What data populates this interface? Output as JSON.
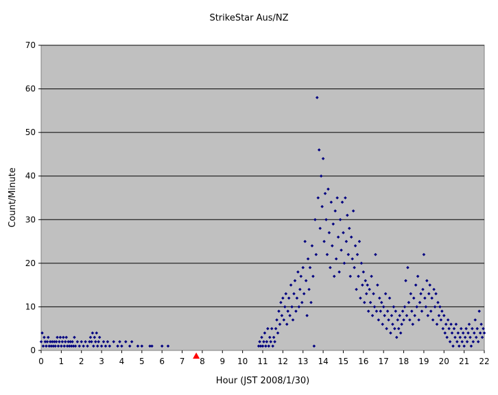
{
  "chart_data": {
    "type": "scatter",
    "title": "StrikeStar Aus/NZ",
    "xlabel": "Hour (JST 2008/1/30)",
    "ylabel": "Count/Minute",
    "xlim": [
      0,
      22
    ],
    "ylim": [
      0,
      70
    ],
    "xticks": [
      "0",
      "1",
      "2",
      "3",
      "4",
      "5",
      "6",
      "7",
      "8",
      "9",
      "10",
      "11",
      "12",
      "13",
      "14",
      "15",
      "16",
      "17",
      "18",
      "19",
      "20",
      "21",
      "22"
    ],
    "yticks": [
      "0",
      "10",
      "20",
      "30",
      "40",
      "50",
      "60",
      "70"
    ],
    "grid": "horizontal",
    "legend": "none",
    "colors": {
      "plot_bg": "#c0c0c0",
      "marker": "#000080",
      "marker_event": "#ff0000",
      "gridline": "#000000"
    },
    "event_marker": {
      "x": 7.7,
      "y": 0
    },
    "series": [
      {
        "marker": "diamond",
        "points": [
          [
            0.0,
            2
          ],
          [
            0.05,
            4
          ],
          [
            0.1,
            1
          ],
          [
            0.15,
            3
          ],
          [
            0.2,
            2
          ],
          [
            0.25,
            1
          ],
          [
            0.3,
            2
          ],
          [
            0.35,
            3
          ],
          [
            0.4,
            1
          ],
          [
            0.45,
            2
          ],
          [
            0.5,
            1
          ],
          [
            0.55,
            2
          ],
          [
            0.6,
            1
          ],
          [
            0.65,
            2
          ],
          [
            0.7,
            1
          ],
          [
            0.75,
            2
          ],
          [
            0.8,
            3
          ],
          [
            0.85,
            1
          ],
          [
            0.9,
            2
          ],
          [
            0.95,
            3
          ],
          [
            1.0,
            1
          ],
          [
            1.05,
            2
          ],
          [
            1.1,
            3
          ],
          [
            1.15,
            1
          ],
          [
            1.2,
            2
          ],
          [
            1.25,
            3
          ],
          [
            1.3,
            1
          ],
          [
            1.35,
            2
          ],
          [
            1.4,
            1
          ],
          [
            1.45,
            2
          ],
          [
            1.5,
            1
          ],
          [
            1.55,
            2
          ],
          [
            1.6,
            1
          ],
          [
            1.65,
            3
          ],
          [
            1.7,
            1
          ],
          [
            1.8,
            2
          ],
          [
            1.9,
            1
          ],
          [
            2.0,
            2
          ],
          [
            2.1,
            1
          ],
          [
            2.2,
            2
          ],
          [
            2.3,
            1
          ],
          [
            2.4,
            2
          ],
          [
            2.45,
            3
          ],
          [
            2.5,
            2
          ],
          [
            2.55,
            4
          ],
          [
            2.6,
            1
          ],
          [
            2.65,
            3
          ],
          [
            2.7,
            2
          ],
          [
            2.75,
            4
          ],
          [
            2.8,
            1
          ],
          [
            2.85,
            2
          ],
          [
            2.9,
            3
          ],
          [
            3.0,
            1
          ],
          [
            3.1,
            2
          ],
          [
            3.2,
            1
          ],
          [
            3.3,
            2
          ],
          [
            3.4,
            1
          ],
          [
            3.6,
            2
          ],
          [
            3.8,
            1
          ],
          [
            3.9,
            2
          ],
          [
            4.0,
            1
          ],
          [
            4.2,
            2
          ],
          [
            4.4,
            1
          ],
          [
            4.5,
            2
          ],
          [
            4.8,
            1
          ],
          [
            5.0,
            1
          ],
          [
            5.4,
            1
          ],
          [
            5.5,
            1
          ],
          [
            6.0,
            1
          ],
          [
            6.3,
            1
          ],
          [
            10.8,
            1
          ],
          [
            10.85,
            2
          ],
          [
            10.9,
            1
          ],
          [
            10.95,
            3
          ],
          [
            11.0,
            1
          ],
          [
            11.05,
            2
          ],
          [
            11.1,
            4
          ],
          [
            11.15,
            1
          ],
          [
            11.2,
            2
          ],
          [
            11.25,
            5
          ],
          [
            11.3,
            1
          ],
          [
            11.35,
            3
          ],
          [
            11.4,
            2
          ],
          [
            11.45,
            5
          ],
          [
            11.5,
            1
          ],
          [
            11.55,
            3
          ],
          [
            11.6,
            2
          ],
          [
            11.65,
            5
          ],
          [
            11.7,
            7
          ],
          [
            11.75,
            4
          ],
          [
            11.8,
            9
          ],
          [
            11.85,
            6
          ],
          [
            11.9,
            11
          ],
          [
            11.95,
            8
          ],
          [
            12.0,
            12
          ],
          [
            12.05,
            7
          ],
          [
            12.1,
            10
          ],
          [
            12.15,
            13
          ],
          [
            12.2,
            6
          ],
          [
            12.25,
            9
          ],
          [
            12.3,
            12
          ],
          [
            12.35,
            8
          ],
          [
            12.4,
            15
          ],
          [
            12.45,
            10
          ],
          [
            12.5,
            7
          ],
          [
            12.55,
            13
          ],
          [
            12.6,
            16
          ],
          [
            12.65,
            9
          ],
          [
            12.7,
            12
          ],
          [
            12.75,
            18
          ],
          [
            12.8,
            10
          ],
          [
            12.85,
            14
          ],
          [
            12.9,
            17
          ],
          [
            12.95,
            11
          ],
          [
            13.0,
            19
          ],
          [
            13.05,
            13
          ],
          [
            13.1,
            25
          ],
          [
            13.15,
            16
          ],
          [
            13.2,
            8
          ],
          [
            13.25,
            21
          ],
          [
            13.3,
            14
          ],
          [
            13.35,
            19
          ],
          [
            13.4,
            11
          ],
          [
            13.45,
            24
          ],
          [
            13.5,
            17
          ],
          [
            13.55,
            1
          ],
          [
            13.6,
            30
          ],
          [
            13.65,
            22
          ],
          [
            13.7,
            58
          ],
          [
            13.75,
            35
          ],
          [
            13.8,
            46
          ],
          [
            13.85,
            28
          ],
          [
            13.9,
            40
          ],
          [
            13.95,
            33
          ],
          [
            14.0,
            44
          ],
          [
            14.05,
            25
          ],
          [
            14.1,
            36
          ],
          [
            14.15,
            30
          ],
          [
            14.2,
            22
          ],
          [
            14.25,
            37
          ],
          [
            14.3,
            27
          ],
          [
            14.35,
            19
          ],
          [
            14.4,
            34
          ],
          [
            14.45,
            24
          ],
          [
            14.5,
            29
          ],
          [
            14.55,
            17
          ],
          [
            14.6,
            32
          ],
          [
            14.65,
            21
          ],
          [
            14.7,
            35
          ],
          [
            14.75,
            26
          ],
          [
            14.8,
            18
          ],
          [
            14.85,
            30
          ],
          [
            14.9,
            23
          ],
          [
            14.95,
            34
          ],
          [
            15.0,
            27
          ],
          [
            15.05,
            20
          ],
          [
            15.1,
            35
          ],
          [
            15.15,
            25
          ],
          [
            15.2,
            31
          ],
          [
            15.25,
            22
          ],
          [
            15.3,
            28
          ],
          [
            15.35,
            17
          ],
          [
            15.4,
            26
          ],
          [
            15.45,
            21
          ],
          [
            15.5,
            32
          ],
          [
            15.55,
            19
          ],
          [
            15.6,
            24
          ],
          [
            15.65,
            14
          ],
          [
            15.7,
            22
          ],
          [
            15.75,
            17
          ],
          [
            15.8,
            25
          ],
          [
            15.85,
            12
          ],
          [
            15.9,
            20
          ],
          [
            15.95,
            15
          ],
          [
            16.0,
            18
          ],
          [
            16.05,
            11
          ],
          [
            16.1,
            16
          ],
          [
            16.15,
            13
          ],
          [
            16.2,
            15
          ],
          [
            16.25,
            9
          ],
          [
            16.3,
            14
          ],
          [
            16.35,
            11
          ],
          [
            16.4,
            17
          ],
          [
            16.45,
            8
          ],
          [
            16.5,
            13
          ],
          [
            16.55,
            10
          ],
          [
            16.6,
            22
          ],
          [
            16.65,
            9
          ],
          [
            16.7,
            15
          ],
          [
            16.75,
            7
          ],
          [
            16.8,
            12
          ],
          [
            16.85,
            9
          ],
          [
            16.9,
            11
          ],
          [
            16.95,
            6
          ],
          [
            17.0,
            10
          ],
          [
            17.05,
            8
          ],
          [
            17.1,
            13
          ],
          [
            17.15,
            5
          ],
          [
            17.2,
            9
          ],
          [
            17.25,
            7
          ],
          [
            17.3,
            12
          ],
          [
            17.35,
            4
          ],
          [
            17.4,
            8
          ],
          [
            17.45,
            6
          ],
          [
            17.5,
            10
          ],
          [
            17.55,
            5
          ],
          [
            17.6,
            9
          ],
          [
            17.65,
            3
          ],
          [
            17.7,
            7
          ],
          [
            17.75,
            5
          ],
          [
            17.8,
            8
          ],
          [
            17.85,
            4
          ],
          [
            17.9,
            6
          ],
          [
            17.95,
            9
          ],
          [
            18.0,
            7
          ],
          [
            18.05,
            10
          ],
          [
            18.1,
            16
          ],
          [
            18.15,
            8
          ],
          [
            18.2,
            19
          ],
          [
            18.25,
            11
          ],
          [
            18.3,
            7
          ],
          [
            18.35,
            13
          ],
          [
            18.4,
            9
          ],
          [
            18.45,
            6
          ],
          [
            18.5,
            12
          ],
          [
            18.55,
            8
          ],
          [
            18.6,
            15
          ],
          [
            18.65,
            10
          ],
          [
            18.7,
            17
          ],
          [
            18.75,
            7
          ],
          [
            18.8,
            11
          ],
          [
            18.85,
            13
          ],
          [
            18.9,
            9
          ],
          [
            18.95,
            14
          ],
          [
            19.0,
            22
          ],
          [
            19.05,
            12
          ],
          [
            19.1,
            10
          ],
          [
            19.15,
            16
          ],
          [
            19.2,
            8
          ],
          [
            19.25,
            13
          ],
          [
            19.3,
            15
          ],
          [
            19.35,
            9
          ],
          [
            19.4,
            12
          ],
          [
            19.45,
            7
          ],
          [
            19.5,
            14
          ],
          [
            19.55,
            10
          ],
          [
            19.6,
            13
          ],
          [
            19.65,
            6
          ],
          [
            19.7,
            11
          ],
          [
            19.75,
            8
          ],
          [
            19.8,
            10
          ],
          [
            19.85,
            7
          ],
          [
            19.9,
            9
          ],
          [
            19.95,
            5
          ],
          [
            20.0,
            8
          ],
          [
            20.05,
            4
          ],
          [
            20.1,
            6
          ],
          [
            20.15,
            3
          ],
          [
            20.2,
            7
          ],
          [
            20.25,
            5
          ],
          [
            20.3,
            2
          ],
          [
            20.35,
            6
          ],
          [
            20.4,
            4
          ],
          [
            20.45,
            1
          ],
          [
            20.5,
            5
          ],
          [
            20.55,
            3
          ],
          [
            20.6,
            6
          ],
          [
            20.65,
            2
          ],
          [
            20.7,
            4
          ],
          [
            20.75,
            1
          ],
          [
            20.8,
            3
          ],
          [
            20.85,
            5
          ],
          [
            20.9,
            2
          ],
          [
            20.95,
            4
          ],
          [
            21.0,
            1
          ],
          [
            21.05,
            3
          ],
          [
            21.1,
            5
          ],
          [
            21.15,
            2
          ],
          [
            21.2,
            4
          ],
          [
            21.25,
            6
          ],
          [
            21.3,
            3
          ],
          [
            21.35,
            1
          ],
          [
            21.4,
            5
          ],
          [
            21.45,
            2
          ],
          [
            21.5,
            4
          ],
          [
            21.55,
            7
          ],
          [
            21.6,
            3
          ],
          [
            21.65,
            5
          ],
          [
            21.7,
            2
          ],
          [
            21.75,
            9
          ],
          [
            21.8,
            4
          ],
          [
            21.85,
            6
          ],
          [
            21.9,
            3
          ],
          [
            21.95,
            5
          ],
          [
            22.0,
            4
          ]
        ]
      }
    ]
  }
}
